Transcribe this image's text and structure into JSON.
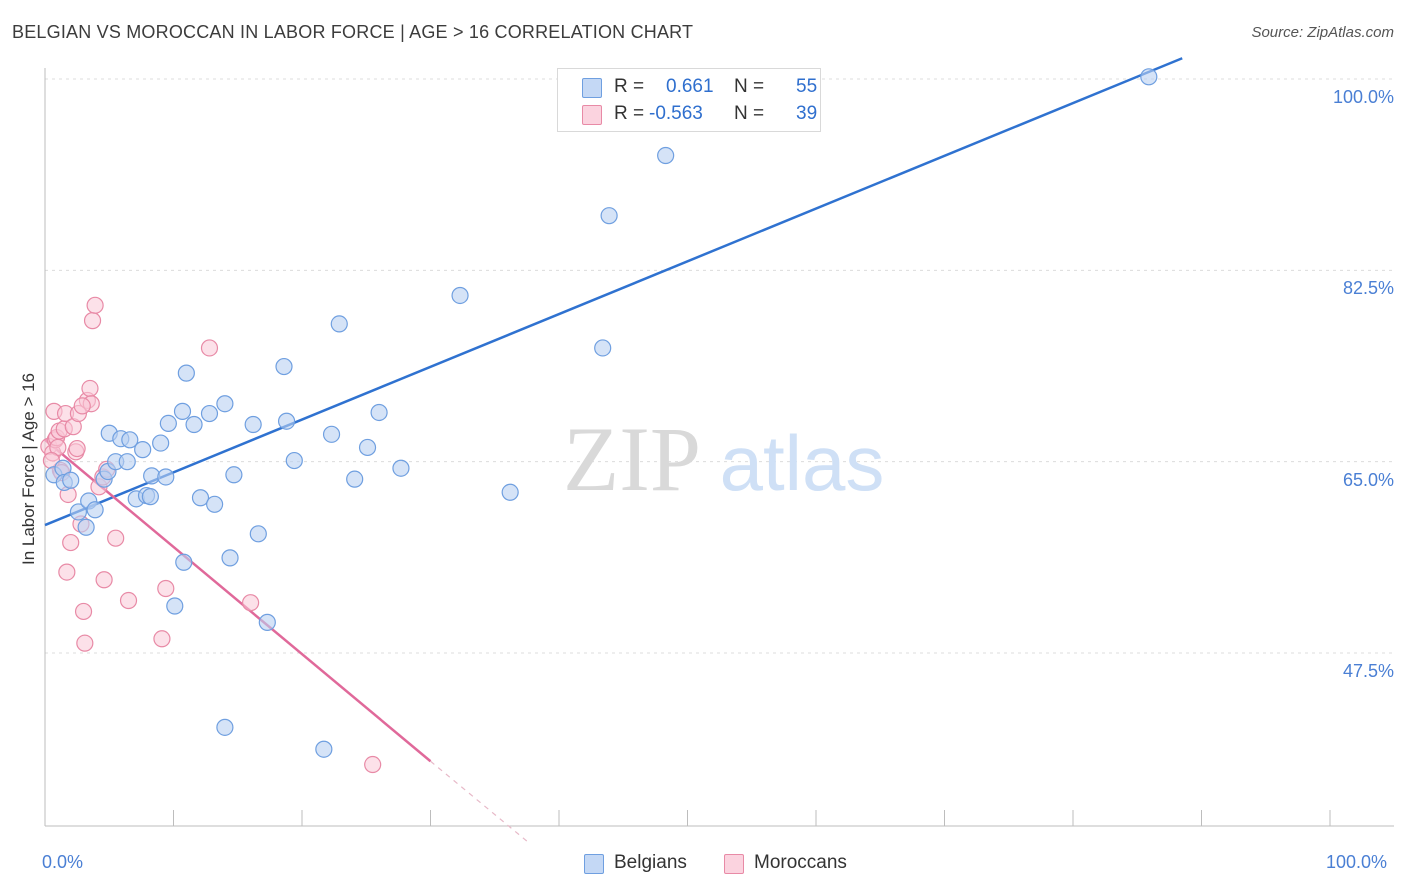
{
  "title": "BELGIAN VS MOROCCAN IN LABOR FORCE | AGE > 16 CORRELATION CHART",
  "source": "Source: ZipAtlas.com",
  "watermark": {
    "zip": "ZIP",
    "atlas": "atlas"
  },
  "legend": {
    "rows": [
      {
        "r_label": "R =",
        "r_value": "0.661",
        "n_label": "N =",
        "n_value": "55",
        "color": "#a8c6f0",
        "border": "#6f9fe0"
      },
      {
        "r_label": "R =",
        "r_value": "-0.563",
        "n_label": "N =",
        "n_value": "39",
        "color": "#f7bfd0",
        "border": "#e88aa6"
      }
    ]
  },
  "bottom_legend": [
    {
      "label": "Belgians",
      "color": "#a8c6f0",
      "border": "#6f9fe0"
    },
    {
      "label": "Moroccans",
      "color": "#f7bfd0",
      "border": "#e88aa6"
    }
  ],
  "chart_data": {
    "type": "scatter",
    "title": "BELGIAN VS MOROCCAN IN LABOR FORCE | AGE > 16 CORRELATION CHART",
    "xlabel": "",
    "ylabel": "In Labor Force | Age > 16",
    "xlim": [
      0,
      100
    ],
    "ylim": [
      32.5,
      102
    ],
    "x_tick_labels": [
      "0.0%",
      "100.0%"
    ],
    "y_ticks": [
      47.5,
      65.0,
      82.5,
      100.0
    ],
    "y_tick_labels": [
      "47.5%",
      "65.0%",
      "82.5%",
      "100.0%"
    ],
    "grid": true,
    "legend_position": "top-center",
    "colors": {
      "belgians": "#6f9fe0",
      "belgians_line": "#2f72d0",
      "moroccans": "#e88aa6",
      "moroccans_line": "#e0699a"
    },
    "series": [
      {
        "name": "Belgians",
        "trend": {
          "x": [
            0,
            88.5
          ],
          "y": [
            59.2,
            101.9
          ]
        },
        "points": [
          [
            0.7,
            63.8
          ],
          [
            1.4,
            64.4
          ],
          [
            1.5,
            63.1
          ],
          [
            2.0,
            63.3
          ],
          [
            2.6,
            60.4
          ],
          [
            3.4,
            61.4
          ],
          [
            3.9,
            60.6
          ],
          [
            4.6,
            63.4
          ],
          [
            4.9,
            64.1
          ],
          [
            5.0,
            67.6
          ],
          [
            5.5,
            65.0
          ],
          [
            5.9,
            67.1
          ],
          [
            6.4,
            65.0
          ],
          [
            6.6,
            67.0
          ],
          [
            7.1,
            61.6
          ],
          [
            7.6,
            66.1
          ],
          [
            7.9,
            61.9
          ],
          [
            8.2,
            61.8
          ],
          [
            8.3,
            63.7
          ],
          [
            9.0,
            66.7
          ],
          [
            9.4,
            63.6
          ],
          [
            9.6,
            68.5
          ],
          [
            10.1,
            51.8
          ],
          [
            10.7,
            69.6
          ],
          [
            11.0,
            73.1
          ],
          [
            11.6,
            68.4
          ],
          [
            12.1,
            61.7
          ],
          [
            12.8,
            69.4
          ],
          [
            13.2,
            61.1
          ],
          [
            14.0,
            70.3
          ],
          [
            14.4,
            56.2
          ],
          [
            14.7,
            63.8
          ],
          [
            16.2,
            68.4
          ],
          [
            16.6,
            58.4
          ],
          [
            17.3,
            50.3
          ],
          [
            18.6,
            73.7
          ],
          [
            18.8,
            68.7
          ],
          [
            19.4,
            65.1
          ],
          [
            21.7,
            38.7
          ],
          [
            22.3,
            67.5
          ],
          [
            22.9,
            77.6
          ],
          [
            24.1,
            63.4
          ],
          [
            25.1,
            66.3
          ],
          [
            26.0,
            69.5
          ],
          [
            27.7,
            64.4
          ],
          [
            32.3,
            80.2
          ],
          [
            36.2,
            62.2
          ],
          [
            43.4,
            75.4
          ],
          [
            43.9,
            87.5
          ],
          [
            48.3,
            93.0
          ],
          [
            51.2,
            100.2
          ],
          [
            85.9,
            100.2
          ],
          [
            14.0,
            40.7
          ],
          [
            10.8,
            55.8
          ],
          [
            3.2,
            59.0
          ]
        ]
      },
      {
        "name": "Moroccans",
        "trend": {
          "x": [
            0,
            30.0
          ],
          "y": [
            67.0,
            37.6
          ]
        },
        "trend_dashed": {
          "x": [
            30.0,
            37.7
          ],
          "y": [
            37.6,
            30.1
          ]
        },
        "points": [
          [
            0.3,
            66.4
          ],
          [
            0.6,
            65.8
          ],
          [
            0.7,
            69.6
          ],
          [
            0.8,
            67.0
          ],
          [
            0.9,
            67.2
          ],
          [
            1.0,
            66.3
          ],
          [
            1.1,
            67.8
          ],
          [
            1.2,
            64.2
          ],
          [
            1.3,
            64.0
          ],
          [
            1.5,
            68.0
          ],
          [
            1.6,
            69.4
          ],
          [
            1.7,
            54.9
          ],
          [
            1.8,
            62.0
          ],
          [
            2.0,
            57.6
          ],
          [
            2.2,
            68.2
          ],
          [
            2.4,
            65.9
          ],
          [
            2.5,
            66.2
          ],
          [
            2.6,
            69.4
          ],
          [
            2.8,
            59.3
          ],
          [
            3.0,
            51.3
          ],
          [
            3.1,
            48.4
          ],
          [
            3.3,
            70.6
          ],
          [
            3.5,
            71.7
          ],
          [
            3.6,
            70.3
          ],
          [
            3.7,
            77.9
          ],
          [
            3.9,
            79.3
          ],
          [
            4.2,
            62.7
          ],
          [
            4.5,
            63.6
          ],
          [
            4.6,
            54.2
          ],
          [
            5.5,
            58.0
          ],
          [
            6.5,
            52.3
          ],
          [
            9.1,
            48.8
          ],
          [
            9.4,
            53.4
          ],
          [
            12.8,
            75.4
          ],
          [
            16.0,
            52.1
          ],
          [
            25.5,
            37.3
          ],
          [
            0.5,
            65.1
          ],
          [
            2.9,
            70.1
          ],
          [
            4.8,
            64.3
          ]
        ]
      }
    ]
  }
}
